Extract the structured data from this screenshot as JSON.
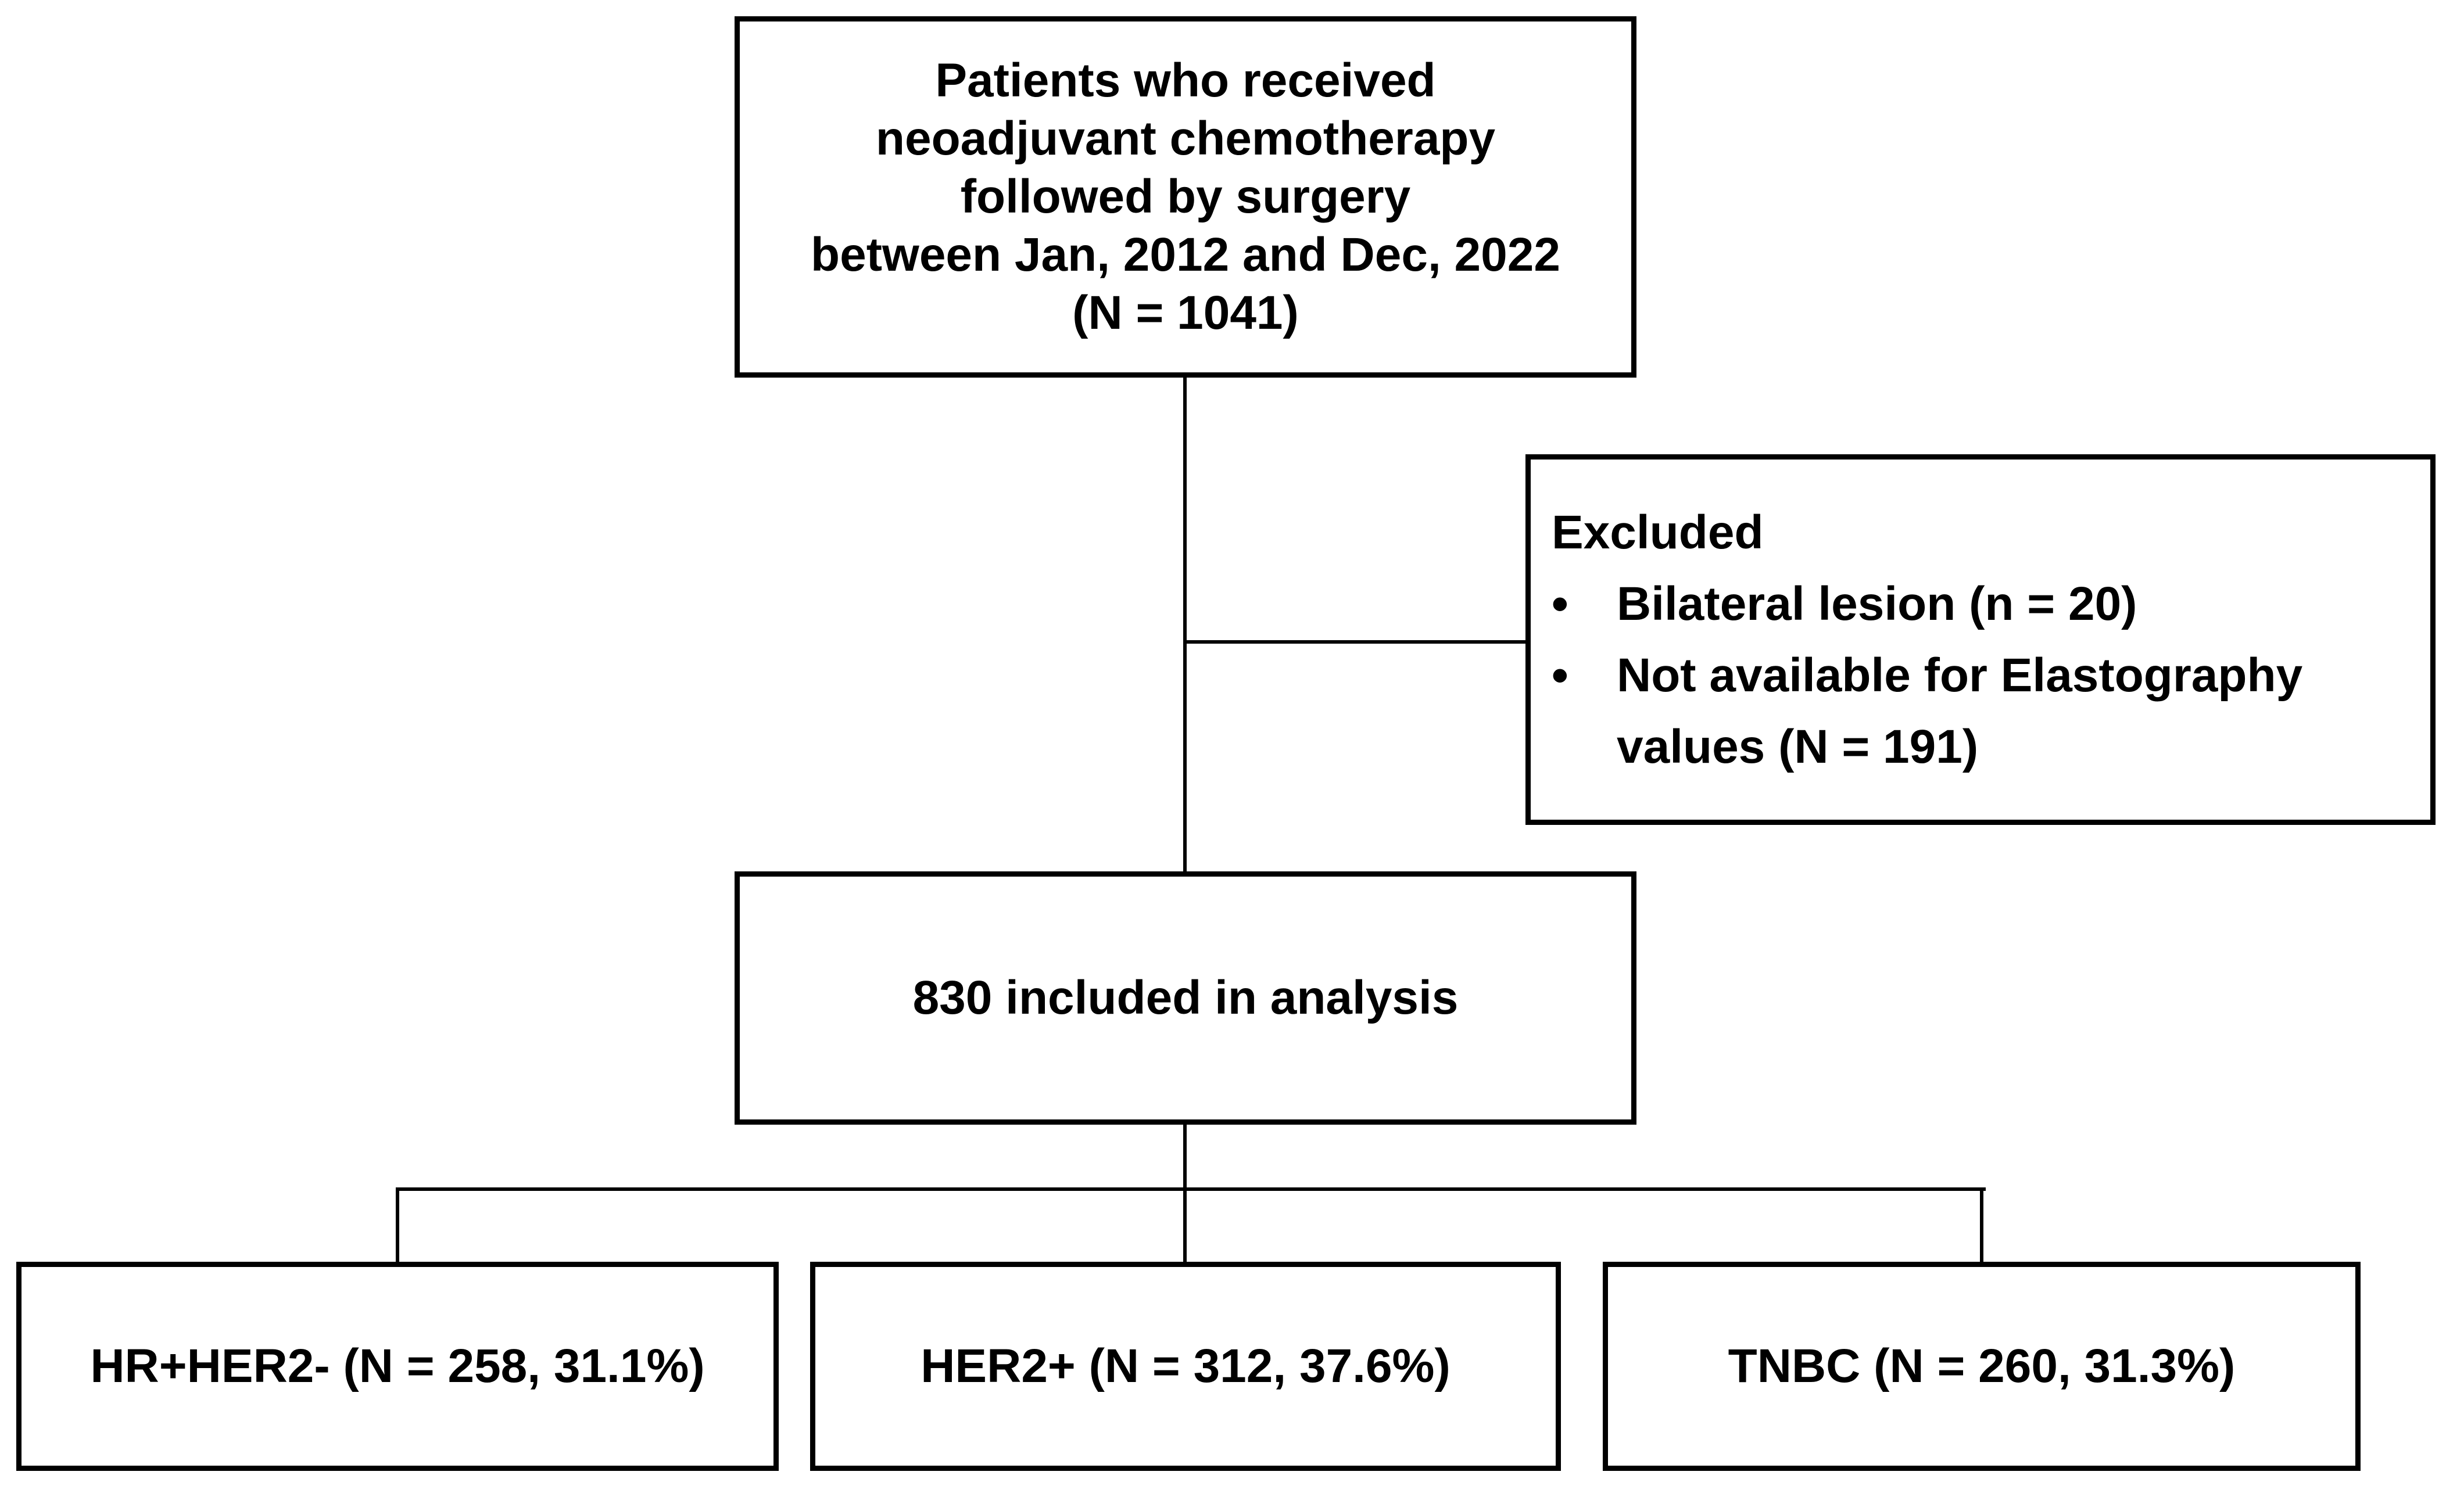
{
  "diagram": {
    "type": "flowchart",
    "background_color": "#ffffff",
    "line_color": "#000000",
    "text_color": "#000000",
    "boxes": {
      "enrollment": {
        "text": "Patients who received\nneoadjuvant chemotherapy\nfollowed by surgery\nbetween Jan, 2012 and Dec, 2022\n(N = 1041)"
      },
      "excluded": {
        "title": "Excluded",
        "bullet": "•",
        "items": [
          "Bilateral lesion (n = 20)",
          "Not available for Elastography values (N = 191)"
        ]
      },
      "included": {
        "text": "830 included in analysis"
      },
      "subtypes": [
        {
          "label": "HR+HER2- (N = 258, 31.1%)"
        },
        {
          "label": "HER2+ (N = 312, 37.6%)"
        },
        {
          "label": "TNBC (N = 260, 31.3%)"
        }
      ]
    }
  }
}
